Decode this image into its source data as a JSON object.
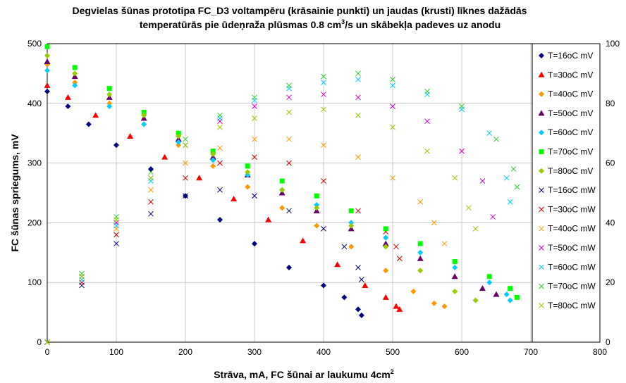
{
  "chart_data": {
    "type": "scatter",
    "title_line1": "Degvielas šūnas prototipa FC_D3 voltampēru (krāsainie punkti) un jaudas (krusti) līknes dažādās",
    "title_line2_a": "temperatūrās pie ūdeņraža plūsmas 0.8 cm",
    "title_line2_sup": "3",
    "title_line2_b": "/s un skābekļa padeves uz anodu",
    "xlabel_a": "Strāva, mA, FC šūnai ar laukumu 4cm",
    "xlabel_sup": "2",
    "ylabel": "FC šūnas spriegums, mV",
    "xlim": [
      0,
      800
    ],
    "ylim": [
      0,
      500
    ],
    "y2lim": [
      0,
      100
    ],
    "x_ticks": [
      "0",
      "100",
      "200",
      "300",
      "400",
      "500",
      "600",
      "700",
      "800"
    ],
    "y_ticks": [
      "0",
      "100",
      "200",
      "300",
      "400",
      "500"
    ],
    "y2_ticks": [
      "0",
      "20",
      "40",
      "60",
      "80",
      "100"
    ],
    "grid": true,
    "legend_position": "right",
    "voltage_series": [
      {
        "name": "T=16oC mV",
        "color": "#00007F",
        "marker": "diamond",
        "x": [
          0,
          30,
          60,
          100,
          150,
          200,
          250,
          300,
          350,
          400,
          430,
          450,
          455
        ],
        "y": [
          420,
          395,
          365,
          330,
          290,
          245,
          205,
          165,
          125,
          95,
          75,
          55,
          45
        ]
      },
      {
        "name": "T=30oC mV",
        "color": "#FF0000",
        "marker": "triangle",
        "x": [
          0,
          30,
          70,
          120,
          170,
          220,
          270,
          320,
          370,
          420,
          460,
          490,
          505,
          510
        ],
        "y": [
          430,
          410,
          380,
          345,
          310,
          275,
          240,
          205,
          170,
          130,
          95,
          75,
          60,
          55
        ]
      },
      {
        "name": "T=40oC mV",
        "color": "#FF9900",
        "marker": "diamond",
        "x": [
          0,
          40,
          90,
          140,
          190,
          240,
          290,
          340,
          390,
          440,
          490,
          530,
          560,
          575
        ],
        "y": [
          465,
          435,
          400,
          365,
          330,
          295,
          260,
          225,
          195,
          160,
          120,
          85,
          65,
          60
        ]
      },
      {
        "name": "T=50oC mV",
        "color": "#660066",
        "marker": "triangle",
        "x": [
          0,
          40,
          90,
          140,
          190,
          240,
          290,
          340,
          390,
          440,
          490,
          540,
          590,
          630,
          650
        ],
        "y": [
          470,
          445,
          410,
          375,
          340,
          310,
          280,
          250,
          220,
          190,
          165,
          140,
          110,
          90,
          80
        ]
      },
      {
        "name": "T=60oC mV",
        "color": "#00CCFF",
        "marker": "diamond",
        "x": [
          0,
          40,
          90,
          140,
          190,
          240,
          290,
          340,
          390,
          440,
          490,
          540,
          590,
          640,
          665,
          670
        ],
        "y": [
          455,
          430,
          395,
          365,
          335,
          305,
          280,
          255,
          230,
          200,
          175,
          150,
          125,
          100,
          80,
          70
        ]
      },
      {
        "name": "T=70oC mV",
        "color": "#00FF00",
        "marker": "square",
        "x": [
          0,
          40,
          90,
          140,
          190,
          240,
          290,
          340,
          390,
          440,
          490,
          540,
          590,
          640,
          670,
          680
        ],
        "y": [
          495,
          460,
          425,
          385,
          350,
          320,
          295,
          270,
          245,
          220,
          190,
          165,
          135,
          110,
          90,
          75
        ]
      },
      {
        "name": "T=80oC mV",
        "color": "#99CC00",
        "marker": "diamond",
        "x": [
          0,
          40,
          90,
          140,
          190,
          240,
          290,
          340,
          390,
          440,
          490,
          540,
          590,
          620
        ],
        "y": [
          480,
          450,
          415,
          380,
          345,
          315,
          285,
          255,
          225,
          195,
          160,
          120,
          85,
          70
        ]
      }
    ],
    "power_series": [
      {
        "name": "T=16oC mW",
        "color": "#00007F",
        "x": [
          0,
          50,
          100,
          150,
          200,
          250,
          300,
          350,
          400,
          430,
          450,
          455
        ],
        "y": [
          0,
          19,
          33,
          43,
          49,
          51,
          49,
          44,
          38,
          32,
          25,
          21
        ]
      },
      {
        "name": "T=30oC mW",
        "color": "#CC0000",
        "x": [
          0,
          50,
          100,
          150,
          200,
          250,
          300,
          350,
          400,
          450,
          490,
          505,
          510
        ],
        "y": [
          0,
          20,
          36,
          47,
          55,
          60,
          62,
          60,
          54,
          44,
          37,
          32,
          28
        ]
      },
      {
        "name": "T=40oC mW",
        "color": "#FF9900",
        "x": [
          0,
          50,
          100,
          150,
          200,
          250,
          300,
          350,
          400,
          450,
          500,
          540,
          560,
          575
        ],
        "y": [
          0,
          22,
          38,
          51,
          60,
          65,
          68,
          68,
          66,
          62,
          55,
          47,
          40,
          33
        ]
      },
      {
        "name": "T=50oC mW",
        "color": "#CC00CC",
        "x": [
          0,
          50,
          100,
          150,
          200,
          250,
          300,
          350,
          400,
          450,
          500,
          550,
          600,
          630,
          645
        ],
        "y": [
          0,
          22,
          40,
          55,
          66,
          74,
          79,
          82,
          83,
          82,
          79,
          74,
          64,
          54,
          42
        ]
      },
      {
        "name": "T=60oC mW",
        "color": "#00CCFF",
        "x": [
          0,
          50,
          100,
          150,
          200,
          250,
          300,
          350,
          400,
          450,
          500,
          550,
          600,
          640,
          665,
          670
        ],
        "y": [
          0,
          21,
          39,
          54,
          66,
          75,
          81,
          85,
          87,
          88,
          86,
          83,
          78,
          70,
          55,
          47
        ]
      },
      {
        "name": "T=70oC mW",
        "color": "#33CC33",
        "x": [
          0,
          50,
          100,
          150,
          200,
          250,
          300,
          350,
          400,
          450,
          500,
          550,
          600,
          650,
          675,
          680
        ],
        "y": [
          0,
          23,
          42,
          57,
          68,
          76,
          82,
          86,
          89,
          90,
          88,
          84,
          79,
          68,
          58,
          52
        ]
      },
      {
        "name": "T=80oC mW",
        "color": "#99CC00",
        "x": [
          0,
          50,
          100,
          150,
          200,
          250,
          300,
          350,
          400,
          450,
          500,
          550,
          590,
          610,
          620
        ],
        "y": [
          0,
          22,
          41,
          55,
          66,
          72,
          75,
          77,
          78,
          76,
          72,
          64,
          55,
          45,
          38
        ]
      }
    ]
  }
}
